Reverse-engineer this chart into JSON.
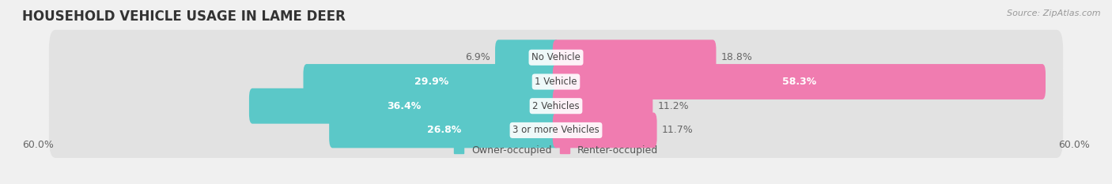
{
  "title": "HOUSEHOLD VEHICLE USAGE IN LAME DEER",
  "source": "Source: ZipAtlas.com",
  "categories": [
    "No Vehicle",
    "1 Vehicle",
    "2 Vehicles",
    "3 or more Vehicles"
  ],
  "owner_values": [
    6.9,
    29.9,
    36.4,
    26.8
  ],
  "renter_values": [
    18.8,
    58.3,
    11.2,
    11.7
  ],
  "owner_color": "#5bc8c8",
  "renter_color": "#f07cb0",
  "owner_label_inside_color": "white",
  "renter_label_inside_color": "white",
  "owner_label_outside_color": "#666666",
  "renter_label_outside_color": "#666666",
  "owner_label": "Owner-occupied",
  "renter_label": "Renter-occupied",
  "axis_limit": 60.0,
  "axis_label_left": "60.0%",
  "axis_label_right": "60.0%",
  "background_color": "#f0f0f0",
  "bar_row_color": "#e2e2e2",
  "title_fontsize": 12,
  "source_fontsize": 8,
  "label_fontsize": 9,
  "category_fontsize": 8.5,
  "bar_height": 0.68,
  "inside_threshold_owner": 15,
  "inside_threshold_renter": 25
}
